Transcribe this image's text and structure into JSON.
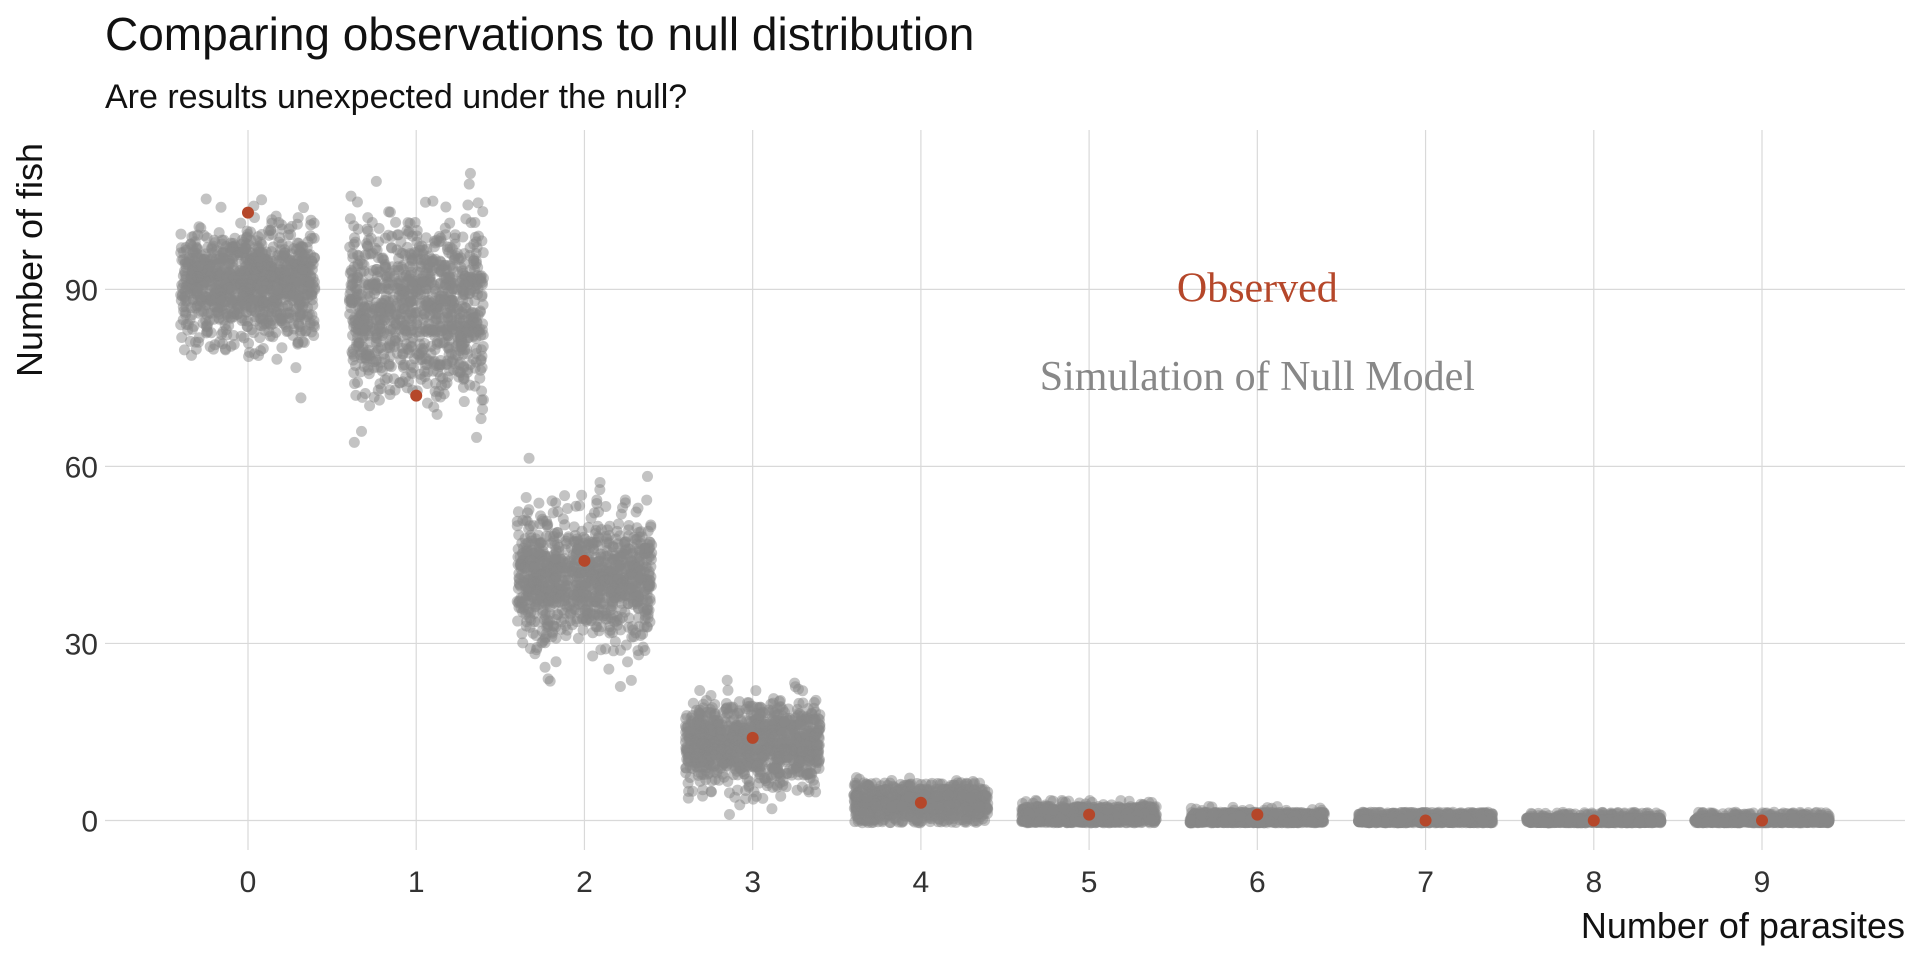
{
  "chart_data": {
    "type": "scatter",
    "title": "Comparing observations to null distribution",
    "subtitle": "Are results unexpected under the null?",
    "xlabel": "Number of parasites",
    "ylabel": "Number of fish",
    "x_ticks": [
      "0",
      "1",
      "2",
      "3",
      "4",
      "5",
      "6",
      "7",
      "8",
      "9"
    ],
    "y_ticks": [
      "0",
      "30",
      "60",
      "90"
    ],
    "xlim": [
      -0.85,
      9.85
    ],
    "ylim": [
      -5,
      117
    ],
    "grid": true,
    "annotations": [
      {
        "text": "Observed",
        "x": 6,
        "y": 90,
        "color": "#B5472A"
      },
      {
        "text": "Simulation of Null Model",
        "x": 6,
        "y": 75,
        "color": "#888888"
      }
    ],
    "series": [
      {
        "name": "Simulation of Null Model",
        "kind": "jittered-simulation",
        "color": "#888888",
        "categories": [
          0,
          1,
          2,
          3,
          4,
          5,
          6,
          7,
          8,
          9
        ],
        "mean": [
          91,
          87,
          41,
          13,
          3,
          0.8,
          0.3,
          0.2,
          0.1,
          0.1
        ],
        "sd": [
          4.6,
          7.2,
          5.6,
          3.4,
          1.6,
          0.9,
          0.5,
          0.4,
          0.3,
          0.3
        ],
        "n_per_category": 1000
      },
      {
        "name": "Observed",
        "kind": "points",
        "color": "#B5472A",
        "x": [
          0,
          1,
          2,
          3,
          4,
          5,
          6,
          7,
          8,
          9
        ],
        "y": [
          103,
          72,
          44,
          14,
          3,
          1,
          1,
          0,
          0,
          0
        ]
      }
    ]
  }
}
